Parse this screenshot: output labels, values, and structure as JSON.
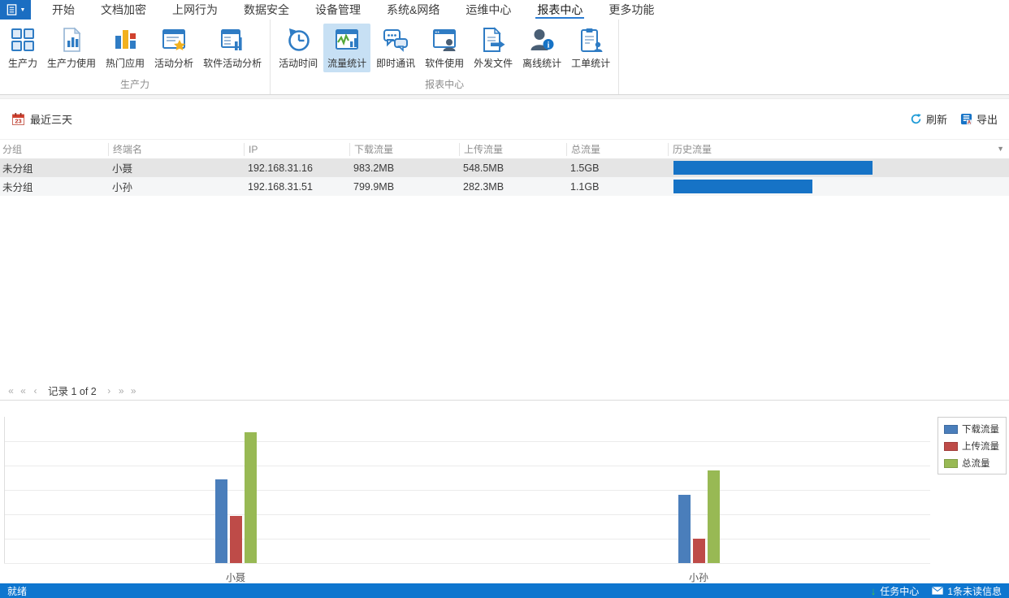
{
  "menu": {
    "tabs": [
      {
        "label": "开始"
      },
      {
        "label": "文档加密"
      },
      {
        "label": "上网行为"
      },
      {
        "label": "数据安全"
      },
      {
        "label": "设备管理"
      },
      {
        "label": "系统&网络"
      },
      {
        "label": "运维中心"
      },
      {
        "label": "报表中心",
        "active": true
      },
      {
        "label": "更多功能"
      }
    ]
  },
  "ribbon": {
    "groups": [
      {
        "label": "生产力",
        "items": [
          {
            "label": "生产力",
            "icon": "productivity-icon"
          },
          {
            "label": "生产力使用",
            "icon": "productivity-usage-icon"
          },
          {
            "label": "热门应用",
            "icon": "hot-apps-icon"
          },
          {
            "label": "活动分析",
            "icon": "activity-analysis-icon"
          },
          {
            "label": "软件活动分析",
            "icon": "software-activity-analysis-icon"
          }
        ]
      },
      {
        "label": "报表中心",
        "items": [
          {
            "label": "活动时间",
            "icon": "activity-time-icon"
          },
          {
            "label": "流量统计",
            "icon": "traffic-stats-icon",
            "selected": true
          },
          {
            "label": "即时通讯",
            "icon": "instant-messaging-icon"
          },
          {
            "label": "软件使用",
            "icon": "software-usage-icon"
          },
          {
            "label": "外发文件",
            "icon": "outgoing-files-icon"
          },
          {
            "label": "离线统计",
            "icon": "offline-stats-icon"
          },
          {
            "label": "工单统计",
            "icon": "work-order-stats-icon"
          }
        ]
      }
    ]
  },
  "toolbar": {
    "date_filter": "最近三天",
    "refresh_label": "刷新",
    "export_label": "导出"
  },
  "table": {
    "columns": [
      "分组",
      "终端名",
      "IP",
      "下载流量",
      "上传流量",
      "总流量",
      "历史流量"
    ],
    "rows": [
      {
        "group": "未分组",
        "name": "小聂",
        "ip": "192.168.31.16",
        "download": "983.2MB",
        "upload": "548.5MB",
        "total": "1.5GB",
        "history_percent": 59.5,
        "selected": true
      },
      {
        "group": "未分组",
        "name": "小孙",
        "ip": "192.168.31.51",
        "download": "799.9MB",
        "upload": "282.3MB",
        "total": "1.1GB",
        "history_percent": 41.5,
        "selected": false
      }
    ]
  },
  "pagination": {
    "label": "记录 1 of 2"
  },
  "chart_data": {
    "type": "bar",
    "title": "",
    "categories": [
      "小聂",
      "小孙"
    ],
    "series": [
      {
        "name": "下载流量",
        "color": "#4a7ebb",
        "values": [
          983.2,
          799.9
        ]
      },
      {
        "name": "上传流量",
        "color": "#be4b48",
        "values": [
          548.5,
          282.3
        ]
      },
      {
        "name": "总流量",
        "color": "#98b954",
        "values": [
          1531.7,
          1082.2
        ]
      }
    ],
    "unit": "MB",
    "xlabel": "",
    "ylabel": "",
    "ylim": [
      0,
      1710
    ],
    "grid": true,
    "y_axis_labels_visible": false,
    "legend_position": "top-right"
  },
  "statusbar": {
    "ready": "就绪",
    "task_center": "任务中心",
    "unread": "1条未读信息"
  }
}
